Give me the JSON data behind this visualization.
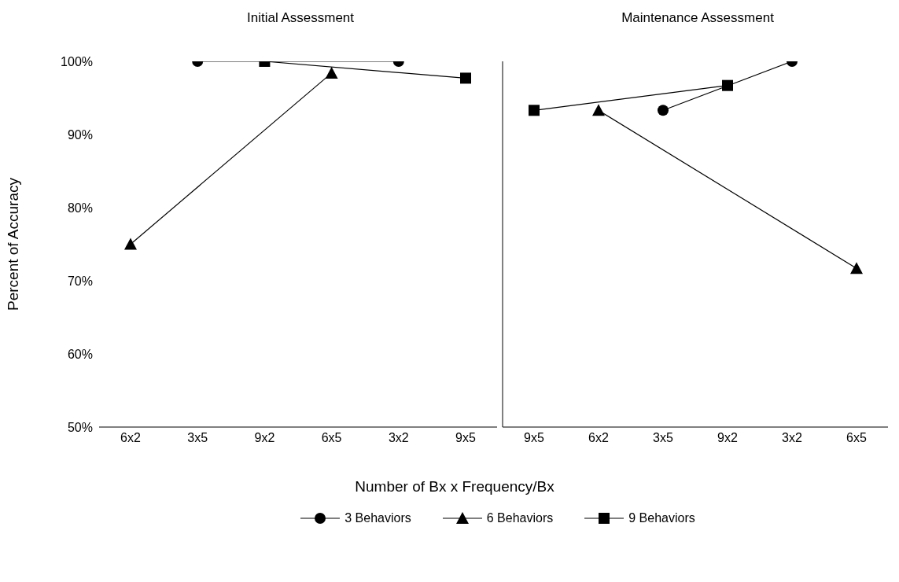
{
  "chart_data": [
    {
      "type": "line",
      "title": "Initial Assessment",
      "ylabel": "Percent of Accuracy",
      "categories": [
        "6x2",
        "3x5",
        "9x2",
        "6x5",
        "3x2",
        "9x5"
      ],
      "legend": "bottom",
      "ylim": [
        50,
        100
      ],
      "yticks": [
        {
          "value": 50,
          "label": "50%"
        },
        {
          "value": 60,
          "label": "60%"
        },
        {
          "value": 70,
          "label": "70%"
        },
        {
          "value": 80,
          "label": "80%"
        },
        {
          "value": 90,
          "label": "90%"
        },
        {
          "value": 100,
          "label": "100%"
        }
      ],
      "grid": false,
      "series": [
        {
          "name": "3 Behaviors",
          "color": "#000000",
          "marker": "circle",
          "values": [
            null,
            100,
            null,
            null,
            100,
            null
          ]
        },
        {
          "name": "6 Behaviors",
          "color": "#000000",
          "marker": "triangle",
          "values": [
            75,
            null,
            null,
            98.4,
            null,
            null
          ]
        },
        {
          "name": "9 Behaviors",
          "color": "#000000",
          "marker": "square",
          "values": [
            null,
            null,
            100,
            null,
            null,
            97.7
          ]
        }
      ]
    },
    {
      "type": "line",
      "title": "Maintenance Assessment",
      "xlabel": "Number of Bx x Frequency/Bx",
      "categories": [
        "9x5",
        "6x2",
        "3x5",
        "9x2",
        "3x2",
        "6x5"
      ],
      "ylim": [
        50,
        100
      ],
      "tick_labels": "x",
      "grid": false,
      "series": [
        {
          "color": "#000000",
          "marker": "circle",
          "values": [
            null,
            null,
            93.3,
            null,
            100,
            null
          ]
        },
        {
          "color": "#000000",
          "marker": "triangle",
          "values": [
            null,
            93.3,
            null,
            null,
            null,
            71.7
          ]
        },
        {
          "color": "#000000",
          "marker": "square",
          "values": [
            93.3,
            null,
            null,
            96.7,
            null,
            null
          ]
        }
      ]
    }
  ]
}
